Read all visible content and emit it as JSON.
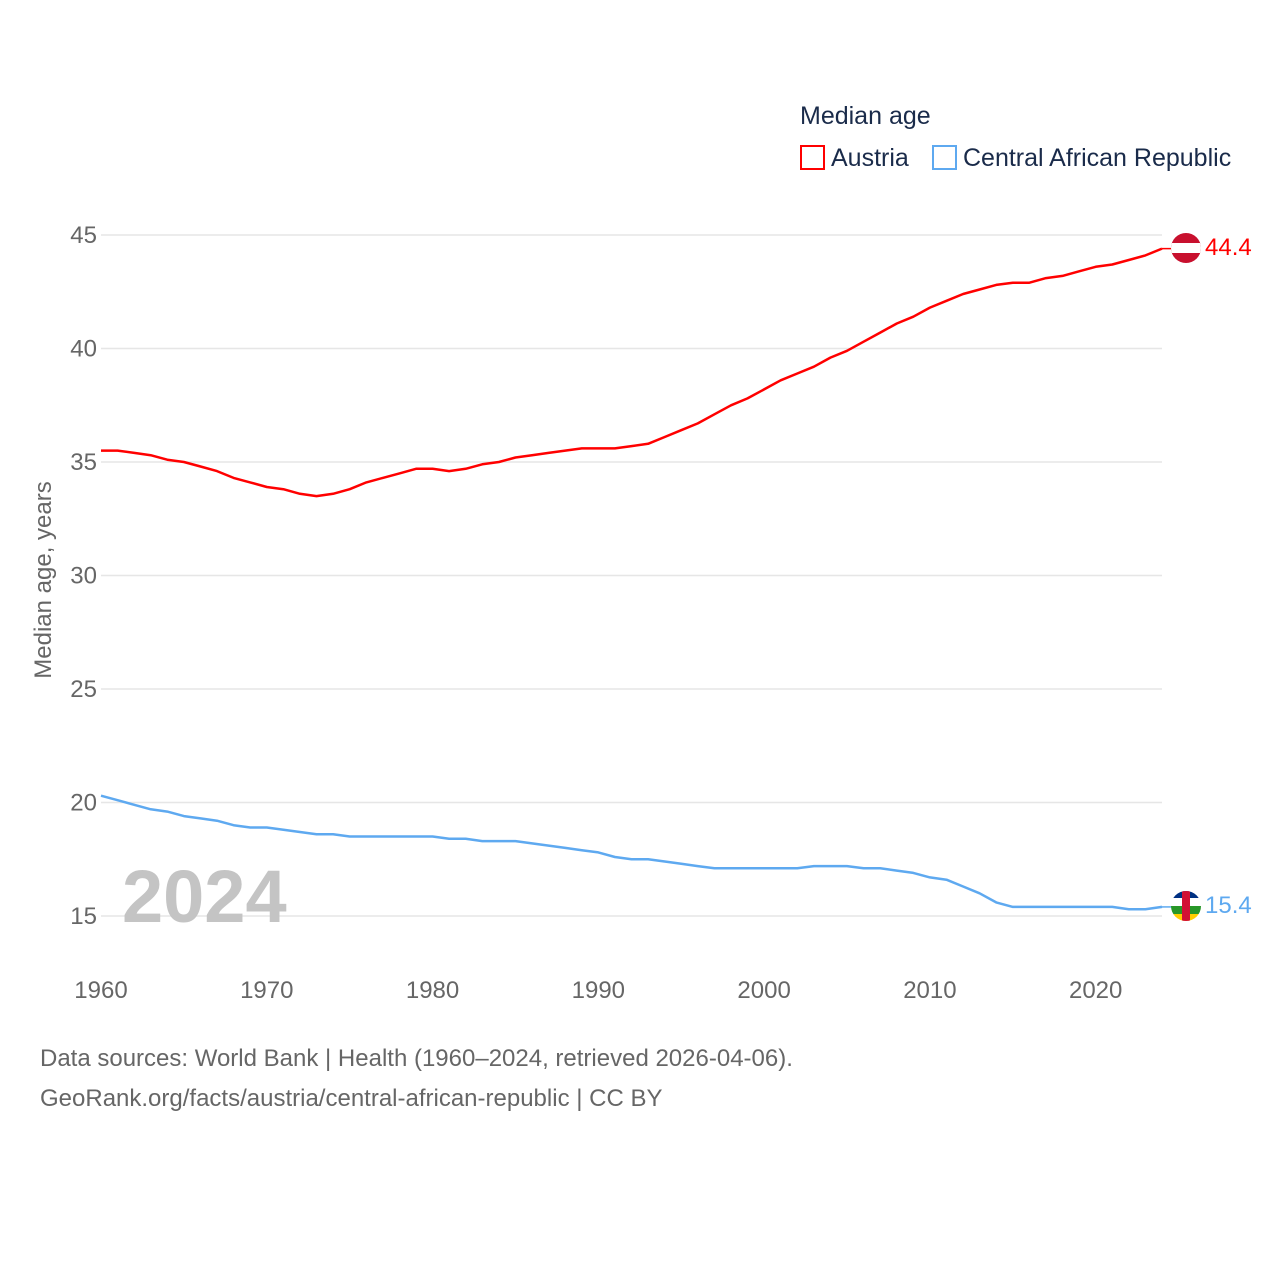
{
  "chart_data": {
    "type": "line",
    "title": "",
    "legend_title": "Median age",
    "legend_placement": "top-right",
    "xlabel": "",
    "ylabel": "Median age, years",
    "xlim": [
      1960,
      2024
    ],
    "ylim": [
      13,
      45.5
    ],
    "x_ticks": [
      "1960",
      "1970",
      "1980",
      "1990",
      "2000",
      "2010",
      "2020"
    ],
    "y_ticks": [
      "15",
      "20",
      "25",
      "30",
      "35",
      "40",
      "45"
    ],
    "grid": true,
    "year_watermark": "2024",
    "x": [
      1960,
      1961,
      1962,
      1963,
      1964,
      1965,
      1966,
      1967,
      1968,
      1969,
      1970,
      1971,
      1972,
      1973,
      1974,
      1975,
      1976,
      1977,
      1978,
      1979,
      1980,
      1981,
      1982,
      1983,
      1984,
      1985,
      1986,
      1987,
      1988,
      1989,
      1990,
      1991,
      1992,
      1993,
      1994,
      1995,
      1996,
      1997,
      1998,
      1999,
      2000,
      2001,
      2002,
      2003,
      2004,
      2005,
      2006,
      2007,
      2008,
      2009,
      2010,
      2011,
      2012,
      2013,
      2014,
      2015,
      2016,
      2017,
      2018,
      2019,
      2020,
      2021,
      2022,
      2023,
      2024
    ],
    "series": [
      {
        "name": "Austria",
        "color": "#ff0000",
        "end_label": "44.4",
        "values": [
          35.5,
          35.5,
          35.4,
          35.3,
          35.1,
          35.0,
          34.8,
          34.6,
          34.3,
          34.1,
          33.9,
          33.8,
          33.6,
          33.5,
          33.6,
          33.8,
          34.1,
          34.3,
          34.5,
          34.7,
          34.7,
          34.6,
          34.7,
          34.9,
          35.0,
          35.2,
          35.3,
          35.4,
          35.5,
          35.6,
          35.6,
          35.6,
          35.7,
          35.8,
          36.1,
          36.4,
          36.7,
          37.1,
          37.5,
          37.8,
          38.2,
          38.6,
          38.9,
          39.2,
          39.6,
          39.9,
          40.3,
          40.7,
          41.1,
          41.4,
          41.8,
          42.1,
          42.4,
          42.6,
          42.8,
          42.9,
          42.9,
          43.1,
          43.2,
          43.4,
          43.6,
          43.7,
          43.9,
          44.1,
          44.4
        ]
      },
      {
        "name": "Central African Republic",
        "color": "#5ea9f0",
        "end_label": "15.4",
        "values": [
          20.3,
          20.1,
          19.9,
          19.7,
          19.6,
          19.4,
          19.3,
          19.2,
          19.0,
          18.9,
          18.9,
          18.8,
          18.7,
          18.6,
          18.6,
          18.5,
          18.5,
          18.5,
          18.5,
          18.5,
          18.5,
          18.4,
          18.4,
          18.3,
          18.3,
          18.3,
          18.2,
          18.1,
          18.0,
          17.9,
          17.8,
          17.6,
          17.5,
          17.5,
          17.4,
          17.3,
          17.2,
          17.1,
          17.1,
          17.1,
          17.1,
          17.1,
          17.1,
          17.2,
          17.2,
          17.2,
          17.1,
          17.1,
          17.0,
          16.9,
          16.7,
          16.6,
          16.3,
          16.0,
          15.6,
          15.4,
          15.4,
          15.4,
          15.4,
          15.4,
          15.4,
          15.4,
          15.3,
          15.3,
          15.4
        ]
      }
    ]
  },
  "footer": {
    "line1": "Data sources: World Bank | Health (1960–2024, retrieved 2026-04-06).",
    "line2": "GeoRank.org/facts/austria/central-african-republic | CC BY"
  }
}
